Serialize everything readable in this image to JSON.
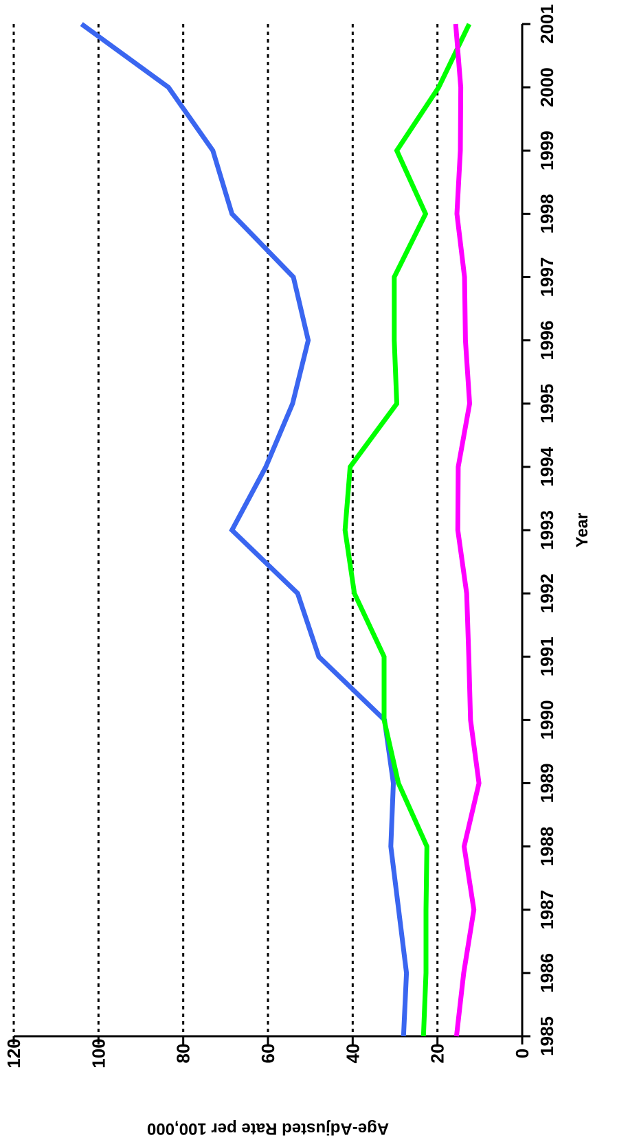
{
  "chart_data": {
    "type": "line",
    "title": "",
    "xlabel": "Year",
    "ylabel": "Age-Adjusted Rate per 100,000",
    "orientation": "rotated-90-clockwise",
    "grid": true,
    "x": [
      1985,
      1986,
      1987,
      1988,
      1989,
      1990,
      1991,
      1992,
      1993,
      1994,
      1995,
      1996,
      1997,
      1998,
      1999,
      2000,
      2001
    ],
    "xticks": [
      "1985",
      "1986",
      "1987",
      "1988",
      "1989",
      "1990",
      "1991",
      "1992",
      "1993",
      "1994",
      "1995",
      "1996",
      "1997",
      "1998",
      "1999",
      "2000",
      "2001"
    ],
    "yticks": [
      "0",
      "20",
      "40",
      "60",
      "80",
      "100",
      "120"
    ],
    "ylim": [
      0,
      120
    ],
    "xlim": [
      1985,
      2001
    ],
    "series": [
      {
        "color": "#3a66f0",
        "values": [
          28,
          27.3,
          null,
          31,
          30.4,
          32.5,
          48,
          53,
          68.5,
          60.5,
          54.2,
          50.5,
          54,
          68.5,
          73,
          83.5,
          104
        ]
      },
      {
        "color": "#00ff00",
        "values": [
          23.3,
          22.7,
          22.7,
          22.5,
          29.2,
          32.6,
          32.6,
          39.6,
          41.8,
          40.6,
          29.6,
          30.2,
          30.2,
          22.8,
          29.6,
          19.7,
          12.5
        ]
      },
      {
        "color": "#ff00ff",
        "values": [
          15.5,
          13.8,
          11.4,
          13.7,
          10.2,
          12.2,
          12.6,
          13.1,
          15.2,
          15.1,
          12.4,
          13.4,
          13.6,
          15.4,
          14.6,
          14.5,
          15.7
        ]
      }
    ]
  }
}
